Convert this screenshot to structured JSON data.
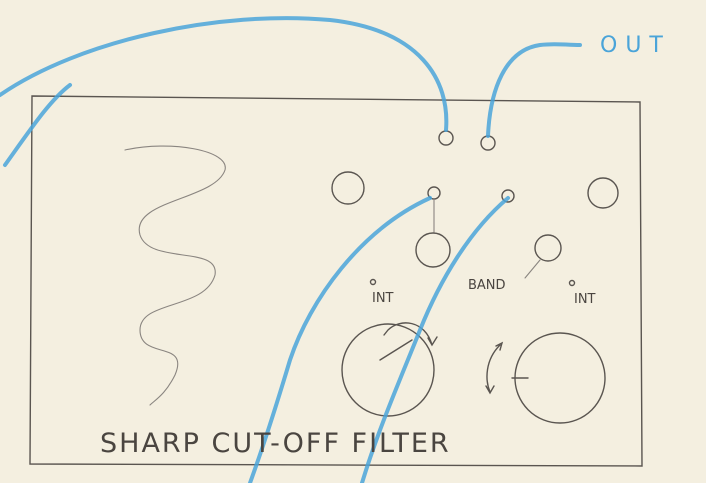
{
  "labels": {
    "output": "OUT",
    "band": "BAND",
    "int_left": "INT",
    "int_right": "INT"
  },
  "title": "SHARP CUT-OFF FILTER"
}
